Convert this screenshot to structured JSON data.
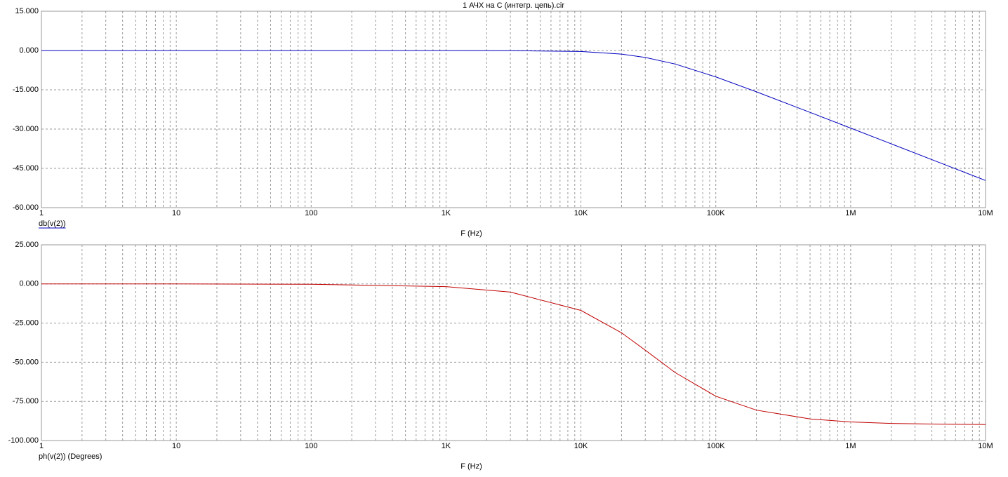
{
  "chart_data": [
    {
      "type": "line",
      "title": "1 АЧХ на C (интегр. цепь).cir",
      "xlabel": "F (Hz)",
      "log_x": true,
      "grid": true,
      "x": [
        1,
        10,
        100,
        1000,
        3000,
        10000,
        20000,
        30000,
        50000,
        100000,
        200000,
        500000,
        1000000,
        2000000,
        5000000,
        10000000
      ],
      "series": [
        {
          "name": "db(v(2))",
          "color": "#0000c0",
          "values": [
            0,
            0,
            0,
            0,
            -0.04,
            -0.38,
            -1.36,
            -2.64,
            -5.17,
            -10.08,
            -15.77,
            -23.63,
            -29.63,
            -35.65,
            -43.61,
            -49.63
          ]
        }
      ],
      "xlim": [
        1,
        10000000
      ],
      "xticks": [
        1,
        10,
        100,
        {
          "value": 1000,
          "label": "1K"
        },
        {
          "value": 10000,
          "label": "10K"
        },
        {
          "value": 100000,
          "label": "100K"
        },
        {
          "value": 1000000,
          "label": "1M"
        },
        {
          "value": 10000000,
          "label": "10M"
        }
      ],
      "xminorticks": [
        2,
        3,
        4,
        5,
        6,
        7,
        8,
        9,
        20,
        30,
        40,
        50,
        60,
        70,
        80,
        90,
        200,
        300,
        400,
        500,
        600,
        700,
        800,
        900,
        2000,
        3000,
        4000,
        5000,
        6000,
        7000,
        8000,
        9000,
        20000,
        30000,
        40000,
        50000,
        60000,
        70000,
        80000,
        90000,
        200000,
        300000,
        400000,
        500000,
        600000,
        700000,
        800000,
        900000,
        2000000,
        3000000,
        4000000,
        5000000,
        6000000,
        7000000,
        8000000,
        9000000
      ],
      "ylim": [
        -60,
        15
      ],
      "yticks": [
        {
          "value": 15,
          "label": "15.000"
        },
        {
          "value": 0,
          "label": "0.000"
        },
        {
          "value": -15,
          "label": "-15.000"
        },
        {
          "value": -30,
          "label": "-30.000"
        },
        {
          "value": -45,
          "label": "-45.000"
        },
        {
          "value": -60,
          "label": "-60.000"
        }
      ]
    },
    {
      "type": "line",
      "xlabel": "F (Hz)",
      "log_x": true,
      "grid": true,
      "x": [
        1,
        10,
        100,
        1000,
        3000,
        10000,
        20000,
        30000,
        50000,
        100000,
        200000,
        500000,
        1000000,
        2000000,
        5000000,
        10000000
      ],
      "series": [
        {
          "name": "ph(v(2)) (Degrees)",
          "color": "#c00000",
          "values": [
            0,
            0,
            -0.2,
            -1.7,
            -5.2,
            -16.9,
            -31.2,
            -42.3,
            -56.6,
            -71.7,
            -80.6,
            -86.2,
            -88.1,
            -89.1,
            -89.6,
            -89.8
          ]
        }
      ],
      "xlim": [
        1,
        10000000
      ],
      "xticks": [
        1,
        10,
        100,
        {
          "value": 1000,
          "label": "1K"
        },
        {
          "value": 10000,
          "label": "10K"
        },
        {
          "value": 100000,
          "label": "100K"
        },
        {
          "value": 1000000,
          "label": "1M"
        },
        {
          "value": 10000000,
          "label": "10M"
        }
      ],
      "xminorticks": [
        2,
        3,
        4,
        5,
        6,
        7,
        8,
        9,
        20,
        30,
        40,
        50,
        60,
        70,
        80,
        90,
        200,
        300,
        400,
        500,
        600,
        700,
        800,
        900,
        2000,
        3000,
        4000,
        5000,
        6000,
        7000,
        8000,
        9000,
        20000,
        30000,
        40000,
        50000,
        60000,
        70000,
        80000,
        90000,
        200000,
        300000,
        400000,
        500000,
        600000,
        700000,
        800000,
        900000,
        2000000,
        3000000,
        4000000,
        5000000,
        6000000,
        7000000,
        8000000,
        9000000
      ],
      "ylim": [
        -100,
        25
      ],
      "yticks": [
        {
          "value": 25,
          "label": "25.000"
        },
        {
          "value": 0,
          "label": "0.000"
        },
        {
          "value": -25,
          "label": "-25.000"
        },
        {
          "value": -50,
          "label": "-50.000"
        },
        {
          "value": -75,
          "label": "-75.000"
        },
        {
          "value": -100,
          "label": "-100.000"
        }
      ]
    }
  ]
}
